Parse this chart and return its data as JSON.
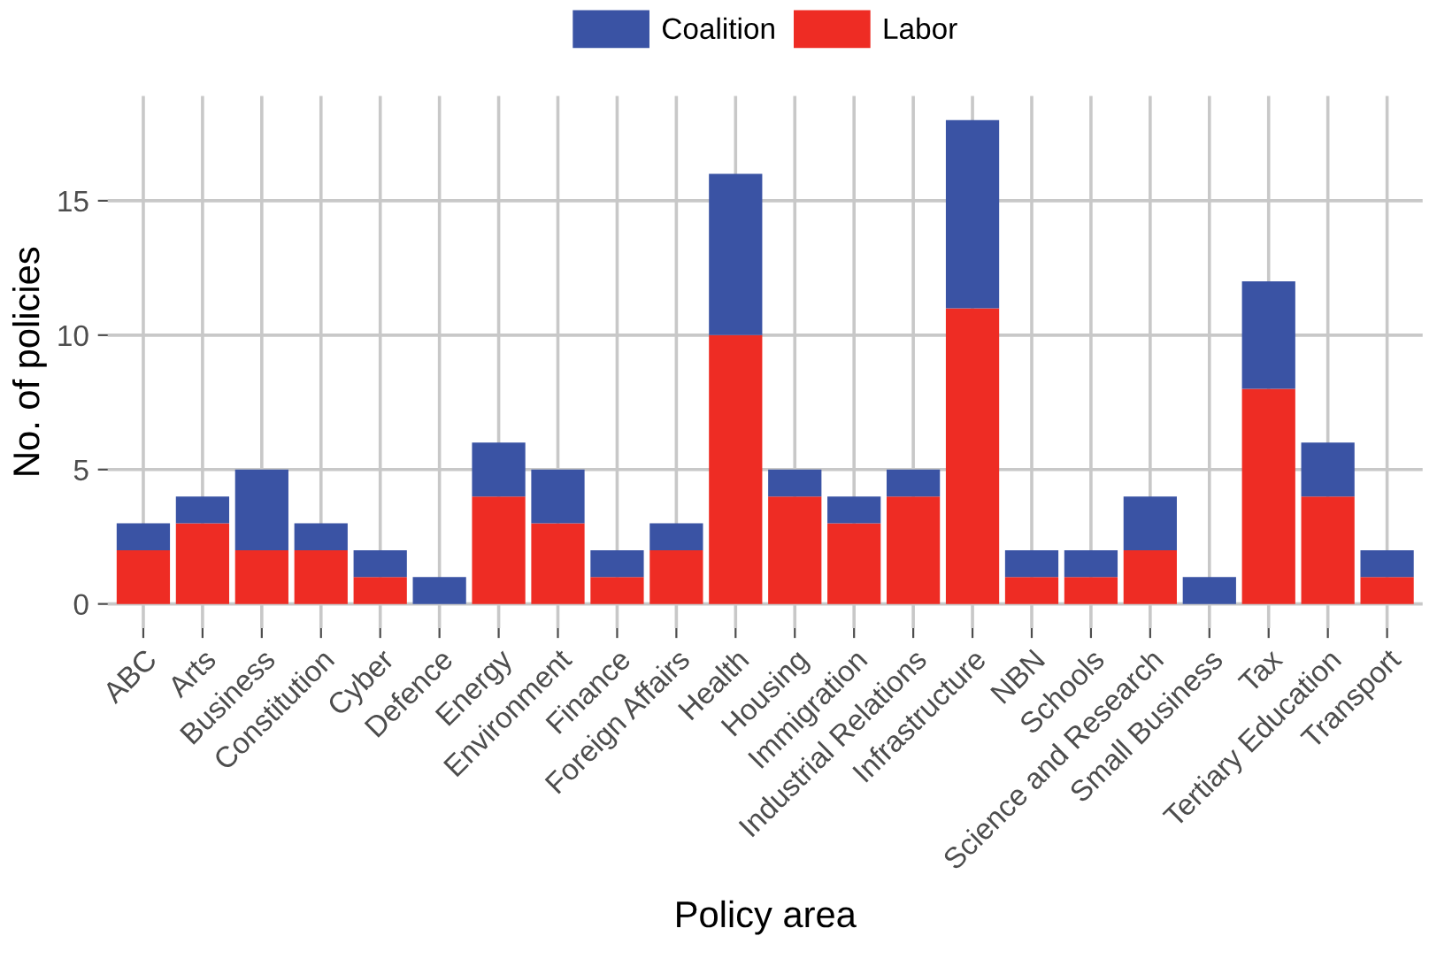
{
  "chart_data": {
    "type": "bar",
    "stacked": true,
    "xlabel": "Policy area",
    "ylabel": "No. of policies",
    "categories": [
      "ABC",
      "Arts",
      "Business",
      "Constitution",
      "Cyber",
      "Defence",
      "Energy",
      "Environment",
      "Finance",
      "Foreign Affairs",
      "Health",
      "Housing",
      "Immigration",
      "Industrial Relations",
      "Infrastructure",
      "NBN",
      "Schools",
      "Science and Research",
      "Small Business",
      "Tax",
      "Tertiary Education",
      "Transport"
    ],
    "series": [
      {
        "name": "Labor",
        "color": "#ee2c24",
        "values": [
          2,
          3,
          2,
          2,
          1,
          0,
          4,
          3,
          1,
          2,
          10,
          4,
          3,
          4,
          11,
          1,
          1,
          2,
          0,
          8,
          4,
          1
        ]
      },
      {
        "name": "Coalition",
        "color": "#3a53a4",
        "values": [
          1,
          1,
          3,
          1,
          1,
          1,
          2,
          2,
          1,
          1,
          6,
          1,
          1,
          1,
          7,
          1,
          1,
          2,
          1,
          4,
          2,
          1
        ]
      }
    ],
    "ylim": [
      -0.9,
      18.9
    ],
    "yticks": [
      0,
      5,
      10,
      15
    ],
    "grid": true,
    "legend": "top"
  }
}
